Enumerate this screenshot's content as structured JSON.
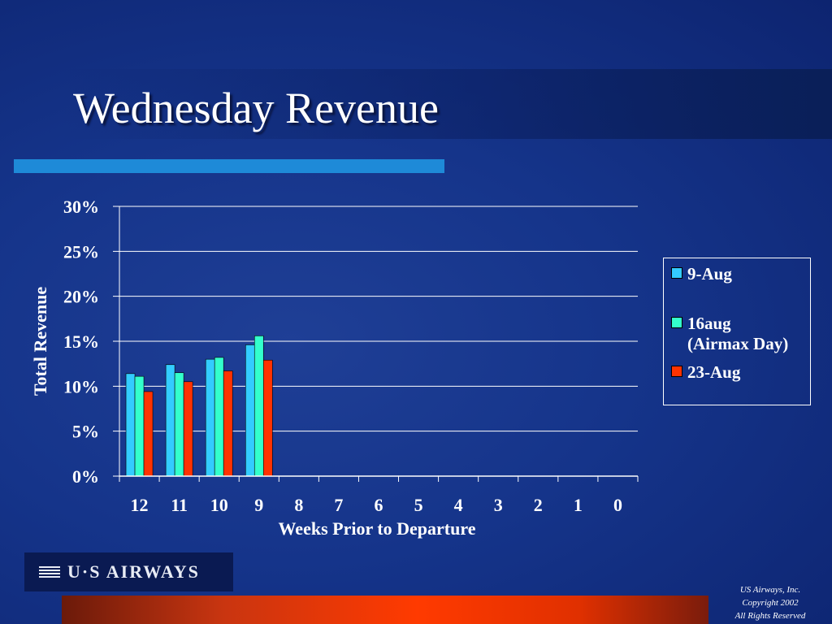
{
  "slide": {
    "title": "Wednesday Revenue",
    "logo_text": "U·S AIRWAYS",
    "copyright_lines": [
      "US Airways, Inc.",
      "Copyright 2002",
      "All Rights Reserved"
    ]
  },
  "colors": {
    "background": "#15348a",
    "accent_bar": "#1e8ad8",
    "bottom_bar": "#ff3a00"
  },
  "chart_data": {
    "type": "bar",
    "title": "",
    "xlabel": "Weeks Prior to Departure",
    "ylabel": "Total Revenue",
    "categories": [
      "12",
      "11",
      "10",
      "9",
      "8",
      "7",
      "6",
      "5",
      "4",
      "3",
      "2",
      "1",
      "0"
    ],
    "ylim": [
      0,
      30
    ],
    "yticks": [
      0,
      5,
      10,
      15,
      20,
      25,
      30
    ],
    "ytick_labels": [
      "0%",
      "5%",
      "10%",
      "15%",
      "20%",
      "25%",
      "30%"
    ],
    "grid": true,
    "legend_position": "right",
    "series": [
      {
        "name": "9-Aug",
        "color": "#33ccff",
        "values": [
          11.4,
          12.4,
          13.0,
          14.6,
          null,
          null,
          null,
          null,
          null,
          null,
          null,
          null,
          null
        ]
      },
      {
        "name": "16aug (Airmax Day)",
        "name_lines": [
          "16aug",
          "(Airmax Day)"
        ],
        "color": "#33ffcc",
        "values": [
          11.1,
          11.5,
          13.2,
          15.6,
          null,
          null,
          null,
          null,
          null,
          null,
          null,
          null,
          null
        ]
      },
      {
        "name": "23-Aug",
        "color": "#ff3300",
        "values": [
          9.4,
          10.5,
          11.7,
          12.9,
          null,
          null,
          null,
          null,
          null,
          null,
          null,
          null,
          null
        ]
      }
    ]
  }
}
